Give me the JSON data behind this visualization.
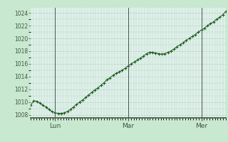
{
  "title": "",
  "fig_bg_color": "#c8e8d0",
  "plot_bg_color": "#dff0ec",
  "line_color": "#1a5c1a",
  "marker_color": "#1a5c1a",
  "grid_color": "#b8d4b8",
  "tick_label_color": "#445544",
  "vline_color": "#445544",
  "xlabel_bg_color": "#c0e8d8",
  "ylim": [
    1007.5,
    1024.8
  ],
  "yticks": [
    1008,
    1010,
    1012,
    1014,
    1016,
    1018,
    1020,
    1022,
    1024
  ],
  "xtick_labels": [
    "Lun",
    "Mar",
    "Mer"
  ],
  "xtick_positions": [
    0.125,
    0.5,
    0.875
  ],
  "y_values": [
    1009.5,
    1010.2,
    1010.1,
    1009.8,
    1009.5,
    1009.2,
    1008.8,
    1008.5,
    1008.3,
    1008.2,
    1008.2,
    1008.3,
    1008.5,
    1008.8,
    1009.2,
    1009.6,
    1010.0,
    1010.3,
    1010.7,
    1011.1,
    1011.5,
    1011.9,
    1012.2,
    1012.6,
    1013.0,
    1013.5,
    1013.8,
    1014.2,
    1014.5,
    1014.7,
    1015.0,
    1015.3,
    1015.7,
    1016.0,
    1016.3,
    1016.6,
    1016.9,
    1017.2,
    1017.6,
    1017.8,
    1017.8,
    1017.7,
    1017.6,
    1017.5,
    1017.6,
    1017.8,
    1018.0,
    1018.3,
    1018.7,
    1019.0,
    1019.3,
    1019.7,
    1020.0,
    1020.3,
    1020.6,
    1021.0,
    1021.3,
    1021.6,
    1022.0,
    1022.3,
    1022.6,
    1023.0,
    1023.3,
    1023.7,
    1024.2
  ]
}
